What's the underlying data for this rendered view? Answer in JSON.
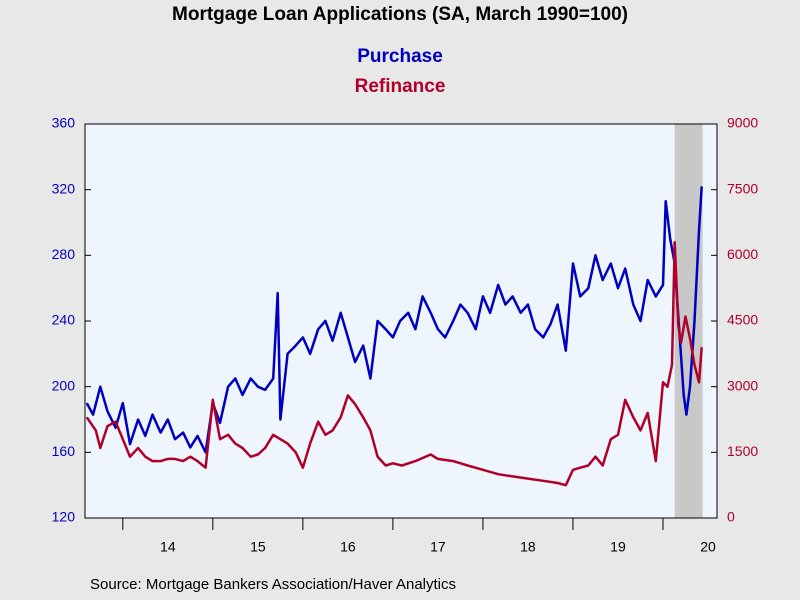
{
  "chart_data": {
    "type": "line",
    "title": "Mortgage Loan Applications (SA, March 1990=100)",
    "source": "Source:  Mortgage Bankers Association/Haver Analytics",
    "xlim": [
      2013.58,
      2020.6
    ],
    "xticks": [
      {
        "value": 2014.5,
        "label": "14"
      },
      {
        "value": 2015.5,
        "label": "15"
      },
      {
        "value": 2016.5,
        "label": "16"
      },
      {
        "value": 2017.5,
        "label": "17"
      },
      {
        "value": 2018.5,
        "label": "18"
      },
      {
        "value": 2019.5,
        "label": "19"
      },
      {
        "value": 2020.5,
        "label": "20"
      }
    ],
    "xtick_marks": [
      2014,
      2015,
      2016,
      2017,
      2018,
      2019,
      2020
    ],
    "ylim": [
      120,
      360
    ],
    "yticks": [
      120,
      160,
      200,
      240,
      280,
      320,
      360
    ],
    "y2lim": [
      0,
      9000
    ],
    "y2ticks": [
      0,
      1500,
      3000,
      4500,
      6000,
      7500,
      9000
    ],
    "shade": {
      "x": [
        2020.13,
        2020.44
      ],
      "color": "#c8c8c8"
    },
    "series": [
      {
        "name": "Purchase",
        "color": "#0000c0",
        "axis": "y",
        "x": [
          2013.6,
          2013.67,
          2013.75,
          2013.83,
          2013.92,
          2014.0,
          2014.08,
          2014.17,
          2014.25,
          2014.33,
          2014.42,
          2014.5,
          2014.58,
          2014.67,
          2014.75,
          2014.83,
          2014.92,
          2015.0,
          2015.08,
          2015.17,
          2015.25,
          2015.33,
          2015.42,
          2015.5,
          2015.58,
          2015.67,
          2015.72,
          2015.75,
          2015.83,
          2015.92,
          2016.0,
          2016.08,
          2016.17,
          2016.25,
          2016.33,
          2016.42,
          2016.5,
          2016.58,
          2016.67,
          2016.75,
          2016.83,
          2016.92,
          2017.0,
          2017.08,
          2017.17,
          2017.25,
          2017.33,
          2017.42,
          2017.5,
          2017.58,
          2017.67,
          2017.75,
          2017.83,
          2017.92,
          2018.0,
          2018.08,
          2018.17,
          2018.25,
          2018.33,
          2018.42,
          2018.5,
          2018.58,
          2018.67,
          2018.75,
          2018.83,
          2018.92,
          2019.0,
          2019.08,
          2019.17,
          2019.25,
          2019.33,
          2019.42,
          2019.5,
          2019.58,
          2019.67,
          2019.75,
          2019.83,
          2019.92,
          2020.0,
          2020.03,
          2020.08,
          2020.13,
          2020.18,
          2020.23,
          2020.26,
          2020.3,
          2020.35,
          2020.4,
          2020.43
        ],
        "values": [
          190,
          183,
          200,
          185,
          175,
          190,
          165,
          180,
          170,
          183,
          172,
          180,
          168,
          172,
          163,
          170,
          160,
          190,
          178,
          200,
          205,
          195,
          205,
          200,
          198,
          205,
          257,
          180,
          220,
          225,
          230,
          220,
          235,
          240,
          228,
          245,
          230,
          215,
          225,
          205,
          240,
          235,
          230,
          240,
          245,
          235,
          255,
          245,
          235,
          230,
          240,
          250,
          245,
          235,
          255,
          245,
          262,
          250,
          255,
          245,
          250,
          235,
          230,
          238,
          250,
          222,
          275,
          255,
          260,
          280,
          265,
          275,
          260,
          272,
          250,
          240,
          265,
          255,
          262,
          313,
          290,
          275,
          235,
          195,
          183,
          200,
          240,
          295,
          322
        ]
      },
      {
        "name": "Refinance",
        "color": "#b0002a",
        "axis": "y2",
        "x": [
          2013.6,
          2013.7,
          2013.75,
          2013.83,
          2013.92,
          2014.0,
          2014.08,
          2014.17,
          2014.25,
          2014.33,
          2014.42,
          2014.5,
          2014.58,
          2014.67,
          2014.75,
          2014.83,
          2014.92,
          2015.0,
          2015.08,
          2015.17,
          2015.25,
          2015.33,
          2015.42,
          2015.5,
          2015.58,
          2015.67,
          2015.75,
          2015.83,
          2015.92,
          2016.0,
          2016.08,
          2016.17,
          2016.25,
          2016.33,
          2016.42,
          2016.5,
          2016.58,
          2016.67,
          2016.75,
          2016.83,
          2016.92,
          2017.0,
          2017.1,
          2017.25,
          2017.42,
          2017.5,
          2017.67,
          2017.83,
          2018.0,
          2018.17,
          2018.33,
          2018.5,
          2018.67,
          2018.83,
          2018.92,
          2019.0,
          2019.08,
          2019.17,
          2019.25,
          2019.33,
          2019.42,
          2019.5,
          2019.58,
          2019.67,
          2019.75,
          2019.83,
          2019.92,
          2020.0,
          2020.05,
          2020.1,
          2020.13,
          2020.17,
          2020.2,
          2020.25,
          2020.3,
          2020.35,
          2020.4,
          2020.43
        ],
        "values": [
          2300,
          2000,
          1600,
          2100,
          2200,
          1800,
          1400,
          1600,
          1400,
          1300,
          1300,
          1350,
          1350,
          1300,
          1400,
          1300,
          1150,
          2700,
          1800,
          1900,
          1700,
          1600,
          1400,
          1450,
          1600,
          1900,
          1800,
          1700,
          1500,
          1150,
          1700,
          2200,
          1900,
          2000,
          2300,
          2800,
          2600,
          2300,
          2000,
          1400,
          1200,
          1250,
          1200,
          1300,
          1450,
          1350,
          1300,
          1200,
          1100,
          1000,
          950,
          900,
          850,
          800,
          750,
          1100,
          1150,
          1200,
          1400,
          1200,
          1800,
          1900,
          2700,
          2300,
          2000,
          2400,
          1300,
          3100,
          3000,
          3500,
          6300,
          4400,
          4000,
          4600,
          4100,
          3500,
          3100,
          3900
        ]
      }
    ]
  }
}
